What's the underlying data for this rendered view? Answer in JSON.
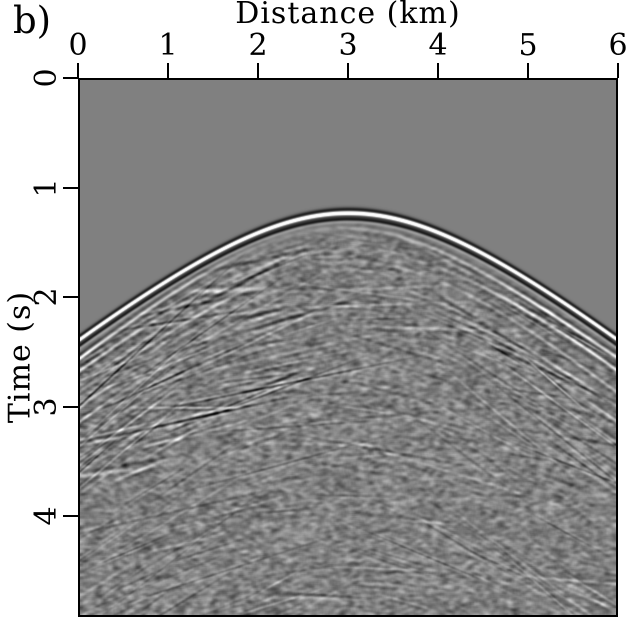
{
  "figure": {
    "panel_label": "b)"
  },
  "chart_data": {
    "type": "heatmap",
    "subtype": "seismic-shot-gather",
    "title": "",
    "xlabel": "Distance (km)",
    "ylabel": "Time (s)",
    "x_range": [
      0,
      6
    ],
    "t_range": [
      0,
      4.92
    ],
    "x_tick_values": [
      0,
      1,
      2,
      3,
      4,
      5,
      6
    ],
    "x_tick_labels": [
      "0",
      "1",
      "2",
      "3",
      "4",
      "5",
      "6"
    ],
    "y_tick_values": [
      0,
      1,
      2,
      3,
      4
    ],
    "y_tick_labels": [
      "0",
      "1",
      "2",
      "3",
      "4"
    ],
    "colormap": "grayscale",
    "background_gray": "#808080",
    "amplitude_colors": {
      "positive": "#ffffff",
      "zero": "#808080",
      "negative": "#000000"
    },
    "first_arrival": {
      "shape": "hyperbola",
      "apex_x_km": 3.0,
      "apex_t_s": 1.22,
      "velocity_km_s": 1.47,
      "edge_time_at_0km_s": 2.38,
      "edge_time_at_6km_s": 2.38,
      "polarity": "white crest with black side lobes"
    },
    "features": [
      "uniform mid-gray (zero amplitude) region above the hyperbolic first arrival",
      "strong white/black hyperbolic first-break wavelet with apex near x=3 km, t=1.22 s",
      "reverberation train of weaker arrivals parallel to the first break, strongest on the flanks",
      "chaotic low-contrast scattered coda below the first arrival",
      "steeply dipping linear events in the lower-left region",
      "short sub-horizontal wavy events beneath the apex"
    ],
    "grid": false,
    "legend": null
  }
}
